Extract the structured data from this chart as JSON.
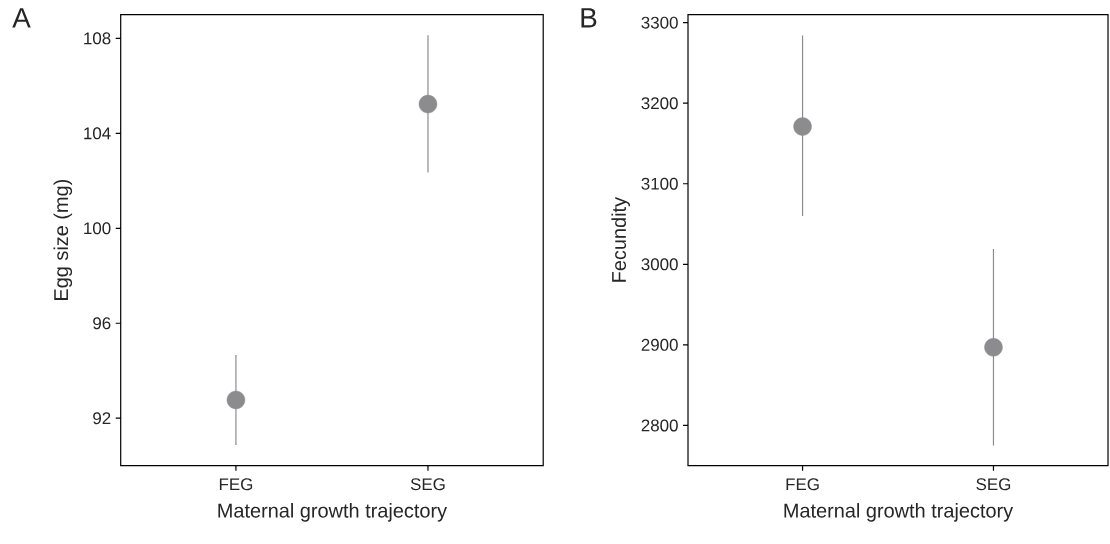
{
  "chart_data": [
    {
      "type": "scatter",
      "title": "A",
      "xlabel": "Maternal growth trajectory",
      "ylabel": "Egg size (mg)",
      "categories": [
        "FEG",
        "SEG"
      ],
      "values": [
        92.77,
        105.23
      ],
      "errors": [
        [
          90.87,
          94.66
        ],
        [
          102.35,
          108.13
        ]
      ],
      "color": "#8c8c8e",
      "marker": "circle",
      "ylim": [
        90,
        109
      ],
      "yticks": [
        92,
        96,
        100,
        104,
        108
      ]
    },
    {
      "type": "scatter",
      "title": "B",
      "xlabel": "Maternal growth trajectory",
      "ylabel": "Fecundity",
      "categories": [
        "FEG",
        "SEG"
      ],
      "values": [
        3171,
        2897
      ],
      "errors": [
        [
          3060,
          3284
        ],
        [
          2775,
          3019
        ]
      ],
      "color": "#8c8c8e",
      "marker": "circle",
      "ylim": [
        2750,
        3310
      ],
      "yticks": [
        2800,
        2900,
        3000,
        3100,
        3200,
        3300
      ]
    }
  ]
}
